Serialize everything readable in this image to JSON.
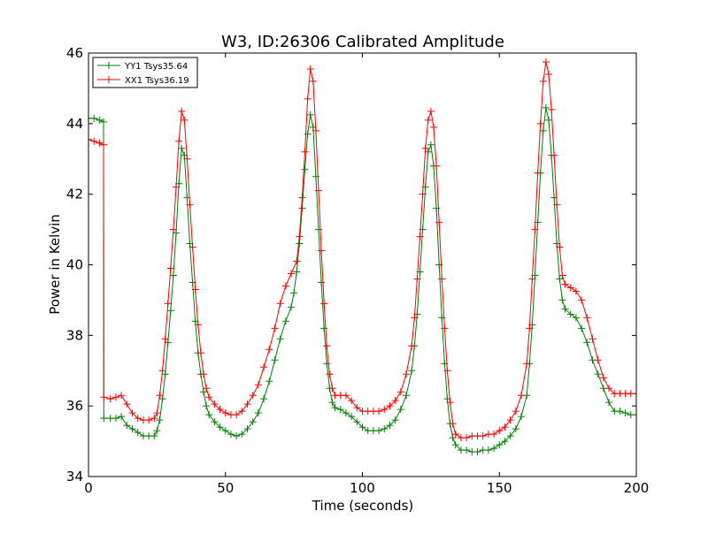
{
  "chart_data": {
    "type": "line",
    "title": "W3, ID:26306 Calibrated Amplitude",
    "xlabel": "Time (seconds)",
    "ylabel": "Power in Kelvin",
    "xlim": [
      0,
      200
    ],
    "ylim": [
      34,
      46
    ],
    "xticks": [
      0,
      50,
      100,
      150,
      200
    ],
    "yticks": [
      34,
      36,
      38,
      40,
      42,
      44,
      46
    ],
    "legend_position": "top-left",
    "marker": "+",
    "series": [
      {
        "name": "YY1 Tsys35.64",
        "color": "#008000",
        "points": [
          [
            0,
            44.15
          ],
          [
            2,
            44.15
          ],
          [
            4,
            44.1
          ],
          [
            5.5,
            44.05
          ],
          [
            5.6,
            35.65
          ],
          [
            8,
            35.65
          ],
          [
            10,
            35.65
          ],
          [
            12,
            35.7
          ],
          [
            14,
            35.45
          ],
          [
            16,
            35.35
          ],
          [
            18,
            35.25
          ],
          [
            20,
            35.15
          ],
          [
            22,
            35.15
          ],
          [
            24,
            35.15
          ],
          [
            25,
            35.3
          ],
          [
            26,
            35.6
          ],
          [
            27,
            36.2
          ],
          [
            28,
            36.9
          ],
          [
            29,
            37.8
          ],
          [
            30,
            38.7
          ],
          [
            31,
            39.7
          ],
          [
            32,
            40.9
          ],
          [
            33,
            42.3
          ],
          [
            34,
            43.3
          ],
          [
            35,
            43.1
          ],
          [
            36,
            41.9
          ],
          [
            37,
            40.6
          ],
          [
            38,
            39.5
          ],
          [
            39,
            38.4
          ],
          [
            40,
            37.5
          ],
          [
            41,
            36.9
          ],
          [
            42,
            36.4
          ],
          [
            43,
            36.0
          ],
          [
            44,
            35.75
          ],
          [
            46,
            35.55
          ],
          [
            48,
            35.4
          ],
          [
            50,
            35.3
          ],
          [
            52,
            35.2
          ],
          [
            54,
            35.15
          ],
          [
            56,
            35.2
          ],
          [
            58,
            35.35
          ],
          [
            60,
            35.55
          ],
          [
            62,
            35.8
          ],
          [
            64,
            36.2
          ],
          [
            66,
            36.7
          ],
          [
            68,
            37.3
          ],
          [
            70,
            37.9
          ],
          [
            72,
            38.4
          ],
          [
            74,
            38.8
          ],
          [
            75,
            39.2
          ],
          [
            76,
            39.8
          ],
          [
            77,
            40.6
          ],
          [
            78,
            41.6
          ],
          [
            79,
            42.7
          ],
          [
            80,
            43.7
          ],
          [
            81,
            44.25
          ],
          [
            82,
            43.9
          ],
          [
            83,
            42.5
          ],
          [
            84,
            41.0
          ],
          [
            85,
            39.5
          ],
          [
            86,
            38.2
          ],
          [
            87,
            37.2
          ],
          [
            88,
            36.5
          ],
          [
            89,
            36.1
          ],
          [
            90,
            35.95
          ],
          [
            92,
            35.9
          ],
          [
            94,
            35.8
          ],
          [
            96,
            35.7
          ],
          [
            98,
            35.55
          ],
          [
            100,
            35.4
          ],
          [
            102,
            35.3
          ],
          [
            104,
            35.3
          ],
          [
            106,
            35.3
          ],
          [
            108,
            35.35
          ],
          [
            110,
            35.45
          ],
          [
            112,
            35.6
          ],
          [
            114,
            35.9
          ],
          [
            116,
            36.3
          ],
          [
            118,
            37.0
          ],
          [
            119,
            37.7
          ],
          [
            120,
            38.6
          ],
          [
            121,
            39.8
          ],
          [
            122,
            41.0
          ],
          [
            123,
            42.2
          ],
          [
            124,
            43.2
          ],
          [
            125,
            43.4
          ],
          [
            126,
            42.8
          ],
          [
            127,
            41.6
          ],
          [
            128,
            40.0
          ],
          [
            129,
            38.5
          ],
          [
            130,
            37.2
          ],
          [
            131,
            36.2
          ],
          [
            132,
            35.5
          ],
          [
            133,
            35.1
          ],
          [
            134,
            34.9
          ],
          [
            136,
            34.75
          ],
          [
            138,
            34.75
          ],
          [
            140,
            34.7
          ],
          [
            142,
            34.7
          ],
          [
            144,
            34.75
          ],
          [
            146,
            34.75
          ],
          [
            148,
            34.8
          ],
          [
            150,
            34.9
          ],
          [
            152,
            35.0
          ],
          [
            154,
            35.15
          ],
          [
            156,
            35.35
          ],
          [
            158,
            35.7
          ],
          [
            160,
            36.3
          ],
          [
            161,
            37.2
          ],
          [
            162,
            38.3
          ],
          [
            163,
            39.7
          ],
          [
            164,
            41.2
          ],
          [
            165,
            42.6
          ],
          [
            166,
            43.8
          ],
          [
            167,
            44.45
          ],
          [
            168,
            44.1
          ],
          [
            169,
            43.1
          ],
          [
            170,
            41.9
          ],
          [
            171,
            40.6
          ],
          [
            172,
            39.6
          ],
          [
            173,
            39.0
          ],
          [
            174,
            38.75
          ],
          [
            176,
            38.6
          ],
          [
            178,
            38.5
          ],
          [
            180,
            38.2
          ],
          [
            182,
            37.8
          ],
          [
            184,
            37.3
          ],
          [
            186,
            36.9
          ],
          [
            188,
            36.5
          ],
          [
            190,
            36.1
          ],
          [
            192,
            35.85
          ],
          [
            194,
            35.85
          ],
          [
            196,
            35.8
          ],
          [
            198,
            35.75
          ],
          [
            200,
            35.75
          ]
        ]
      },
      {
        "name": "XX1 Tsys36.19",
        "color": "#ff0000",
        "points": [
          [
            0,
            43.55
          ],
          [
            2,
            43.5
          ],
          [
            4,
            43.45
          ],
          [
            5.5,
            43.4
          ],
          [
            5.6,
            36.25
          ],
          [
            8,
            36.2
          ],
          [
            10,
            36.25
          ],
          [
            12,
            36.3
          ],
          [
            14,
            36.05
          ],
          [
            16,
            35.8
          ],
          [
            18,
            35.65
          ],
          [
            20,
            35.6
          ],
          [
            22,
            35.6
          ],
          [
            24,
            35.65
          ],
          [
            25,
            35.8
          ],
          [
            26,
            36.3
          ],
          [
            27,
            37.0
          ],
          [
            28,
            37.9
          ],
          [
            29,
            38.9
          ],
          [
            30,
            39.9
          ],
          [
            31,
            41.0
          ],
          [
            32,
            42.2
          ],
          [
            33,
            43.5
          ],
          [
            34,
            44.35
          ],
          [
            35,
            44.1
          ],
          [
            36,
            43.0
          ],
          [
            37,
            41.7
          ],
          [
            38,
            40.5
          ],
          [
            39,
            39.3
          ],
          [
            40,
            38.3
          ],
          [
            41,
            37.5
          ],
          [
            42,
            36.9
          ],
          [
            43,
            36.5
          ],
          [
            44,
            36.25
          ],
          [
            46,
            36.05
          ],
          [
            48,
            35.9
          ],
          [
            50,
            35.8
          ],
          [
            52,
            35.75
          ],
          [
            54,
            35.75
          ],
          [
            56,
            35.85
          ],
          [
            58,
            36.05
          ],
          [
            60,
            36.3
          ],
          [
            62,
            36.6
          ],
          [
            64,
            37.1
          ],
          [
            66,
            37.6
          ],
          [
            68,
            38.2
          ],
          [
            70,
            38.9
          ],
          [
            72,
            39.4
          ],
          [
            74,
            39.75
          ],
          [
            76,
            40.1
          ],
          [
            77,
            40.8
          ],
          [
            78,
            41.9
          ],
          [
            79,
            43.2
          ],
          [
            80,
            44.7
          ],
          [
            81,
            45.55
          ],
          [
            82,
            45.2
          ],
          [
            83,
            43.8
          ],
          [
            84,
            42.1
          ],
          [
            85,
            40.4
          ],
          [
            86,
            38.9
          ],
          [
            87,
            37.7
          ],
          [
            88,
            36.9
          ],
          [
            89,
            36.5
          ],
          [
            90,
            36.3
          ],
          [
            92,
            36.3
          ],
          [
            94,
            36.3
          ],
          [
            96,
            36.15
          ],
          [
            98,
            35.95
          ],
          [
            100,
            35.85
          ],
          [
            102,
            35.85
          ],
          [
            104,
            35.85
          ],
          [
            106,
            35.85
          ],
          [
            108,
            35.9
          ],
          [
            110,
            36.0
          ],
          [
            112,
            36.15
          ],
          [
            114,
            36.4
          ],
          [
            116,
            36.9
          ],
          [
            118,
            37.7
          ],
          [
            119,
            38.5
          ],
          [
            120,
            39.6
          ],
          [
            121,
            40.8
          ],
          [
            122,
            42.0
          ],
          [
            123,
            43.3
          ],
          [
            124,
            44.1
          ],
          [
            125,
            44.35
          ],
          [
            126,
            43.9
          ],
          [
            127,
            42.8
          ],
          [
            128,
            41.2
          ],
          [
            129,
            39.6
          ],
          [
            130,
            38.2
          ],
          [
            131,
            37.0
          ],
          [
            132,
            36.1
          ],
          [
            133,
            35.5
          ],
          [
            134,
            35.2
          ],
          [
            136,
            35.1
          ],
          [
            138,
            35.1
          ],
          [
            140,
            35.15
          ],
          [
            142,
            35.15
          ],
          [
            144,
            35.15
          ],
          [
            146,
            35.2
          ],
          [
            148,
            35.2
          ],
          [
            150,
            35.3
          ],
          [
            152,
            35.4
          ],
          [
            154,
            35.6
          ],
          [
            156,
            35.85
          ],
          [
            158,
            36.3
          ],
          [
            160,
            37.2
          ],
          [
            161,
            38.2
          ],
          [
            162,
            39.6
          ],
          [
            163,
            41.0
          ],
          [
            164,
            42.6
          ],
          [
            165,
            44.0
          ],
          [
            166,
            45.2
          ],
          [
            167,
            45.75
          ],
          [
            168,
            45.4
          ],
          [
            169,
            44.4
          ],
          [
            170,
            43.1
          ],
          [
            171,
            41.7
          ],
          [
            172,
            40.5
          ],
          [
            173,
            39.7
          ],
          [
            174,
            39.45
          ],
          [
            176,
            39.35
          ],
          [
            178,
            39.25
          ],
          [
            180,
            39.0
          ],
          [
            182,
            38.5
          ],
          [
            184,
            37.9
          ],
          [
            186,
            37.3
          ],
          [
            188,
            36.8
          ],
          [
            190,
            36.5
          ],
          [
            192,
            36.35
          ],
          [
            194,
            36.35
          ],
          [
            196,
            36.35
          ],
          [
            198,
            36.35
          ],
          [
            200,
            36.35
          ]
        ]
      }
    ]
  }
}
